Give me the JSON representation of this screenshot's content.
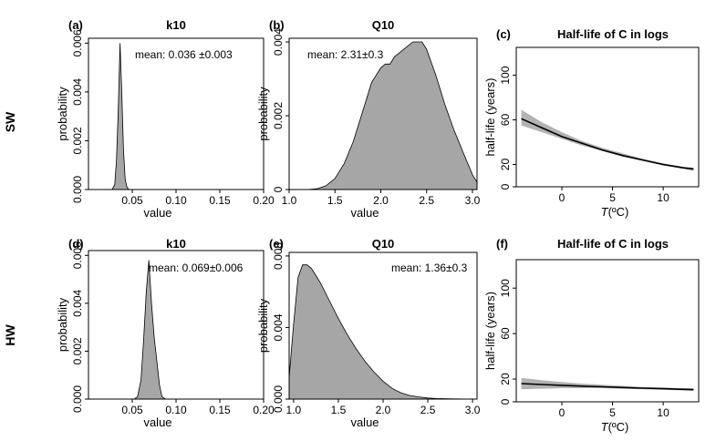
{
  "row_labels": [
    "SW",
    "HW"
  ],
  "chart_data": [
    {
      "type": "area",
      "panel_label": "(a)",
      "title": "k10",
      "annotation": "mean: 0.036 ±0.003",
      "xlabel": "value",
      "ylabel": "probability",
      "xlim": [
        0.0,
        0.2
      ],
      "ylim": [
        0,
        0.0062
      ],
      "xticks": [
        "0.05",
        "0.10",
        "0.15",
        "0.20"
      ],
      "yticks": [
        "0.000",
        "0.002",
        "0.004",
        "0.006"
      ],
      "x": [
        0.027,
        0.03,
        0.032,
        0.034,
        0.036,
        0.038,
        0.04,
        0.042,
        0.044,
        0.046
      ],
      "y": [
        0.0,
        0.0002,
        0.0012,
        0.0032,
        0.006,
        0.004,
        0.0016,
        0.0004,
        0.0001,
        0.0
      ]
    },
    {
      "type": "area",
      "panel_label": "(b)",
      "title": "Q10",
      "annotation": "mean: 2.31±0.3",
      "xlabel": "value",
      "ylabel": "probability",
      "xlim": [
        1.0,
        3.05
      ],
      "ylim": [
        0,
        0.0041
      ],
      "xticks": [
        "1.0",
        "1.5",
        "2.0",
        "2.5",
        "3.0"
      ],
      "yticks": [
        "0",
        "0.002",
        "0.004"
      ],
      "x": [
        1.2,
        1.3,
        1.4,
        1.5,
        1.6,
        1.7,
        1.8,
        1.9,
        2.0,
        2.05,
        2.1,
        2.15,
        2.2,
        2.3,
        2.35,
        2.4,
        2.45,
        2.5,
        2.6,
        2.7,
        2.8,
        2.9,
        3.0,
        3.05
      ],
      "y": [
        0.0,
        2e-05,
        0.0001,
        0.0003,
        0.0007,
        0.0013,
        0.0021,
        0.0029,
        0.0033,
        0.0034,
        0.0034,
        0.0036,
        0.0037,
        0.0039,
        0.004,
        0.004,
        0.004,
        0.0038,
        0.0031,
        0.0023,
        0.0016,
        0.001,
        0.0004,
        0.0002
      ]
    },
    {
      "type": "line",
      "panel_label": "(c)",
      "title": "Half-life of C in logs",
      "xlabel": "T(ºC)",
      "ylabel": "half-life (years)",
      "xlim": [
        -4.5,
        13.5
      ],
      "ylim": [
        0,
        125
      ],
      "xticks": [
        "0",
        "5",
        "10"
      ],
      "yticks": [
        "0",
        "20",
        "60",
        "100"
      ],
      "x": [
        -4,
        -2,
        0,
        2,
        4,
        6,
        8,
        10,
        12,
        13
      ],
      "y": [
        61,
        53,
        45,
        39,
        33,
        28,
        24,
        20,
        17,
        16
      ],
      "lower": [
        55,
        49,
        43,
        37,
        32,
        27,
        23,
        19,
        16,
        14
      ],
      "upper": [
        69,
        58,
        49,
        41,
        35,
        30,
        25,
        21,
        18,
        17
      ]
    },
    {
      "type": "area",
      "panel_label": "(d)",
      "title": "k10",
      "annotation": "mean: 0.069±0.006",
      "xlabel": "value",
      "ylabel": "probability",
      "xlim": [
        0.0,
        0.2
      ],
      "ylim": [
        0,
        0.0062
      ],
      "xticks": [
        "0.05",
        "0.10",
        "0.15",
        "0.20"
      ],
      "yticks": [
        "0.000",
        "0.002",
        "0.004",
        "0.006"
      ],
      "x": [
        0.052,
        0.056,
        0.06,
        0.063,
        0.066,
        0.069,
        0.072,
        0.075,
        0.078,
        0.081,
        0.084,
        0.088
      ],
      "y": [
        0.0,
        0.0001,
        0.0008,
        0.0025,
        0.0045,
        0.0058,
        0.004,
        0.0026,
        0.0016,
        0.0006,
        0.0001,
        0.0
      ]
    },
    {
      "type": "area",
      "panel_label": "(e)",
      "title": "Q10",
      "annotation": "mean: 1.36±0.3",
      "xlabel": "value",
      "ylabel": "probability",
      "xlim": [
        0.95,
        3.05
      ],
      "ylim": [
        0,
        0.0082
      ],
      "xticks": [
        "1.0",
        "1.5",
        "2.0",
        "2.5",
        "3.0"
      ],
      "yticks": [
        "0.000",
        "0.004",
        "0.008"
      ],
      "x": [
        0.95,
        1.0,
        1.05,
        1.1,
        1.15,
        1.2,
        1.25,
        1.3,
        1.4,
        1.5,
        1.6,
        1.7,
        1.8,
        1.9,
        2.0,
        2.1,
        2.2,
        2.3,
        2.4,
        2.5,
        2.6,
        2.8,
        3.0
      ],
      "y": [
        0.0012,
        0.0042,
        0.0068,
        0.0075,
        0.0075,
        0.0073,
        0.0069,
        0.0065,
        0.0055,
        0.0045,
        0.0036,
        0.0028,
        0.0021,
        0.0015,
        0.001,
        0.0006,
        0.00035,
        0.0002,
        0.00012,
        6e-05,
        3e-05,
        1e-05,
        0.0
      ]
    },
    {
      "type": "line",
      "panel_label": "(f)",
      "title": "Half-life of C in logs",
      "xlabel": "T(ºC)",
      "ylabel": "half-life (years)",
      "xlim": [
        -4.5,
        13.5
      ],
      "ylim": [
        0,
        125
      ],
      "xticks": [
        "0",
        "5",
        "10"
      ],
      "yticks": [
        "0",
        "20",
        "60",
        "100"
      ],
      "x": [
        -4,
        -2,
        0,
        2,
        4,
        6,
        8,
        10,
        12,
        13
      ],
      "y": [
        16,
        15.2,
        14.5,
        13.8,
        13.2,
        12.6,
        12.0,
        11.5,
        11.0,
        10.7
      ],
      "lower": [
        11,
        11.5,
        12,
        12,
        12,
        11.5,
        11,
        10.5,
        10,
        9.5
      ],
      "upper": [
        21,
        19,
        17.5,
        16,
        15,
        14,
        13,
        12.5,
        12,
        11.8
      ]
    }
  ]
}
